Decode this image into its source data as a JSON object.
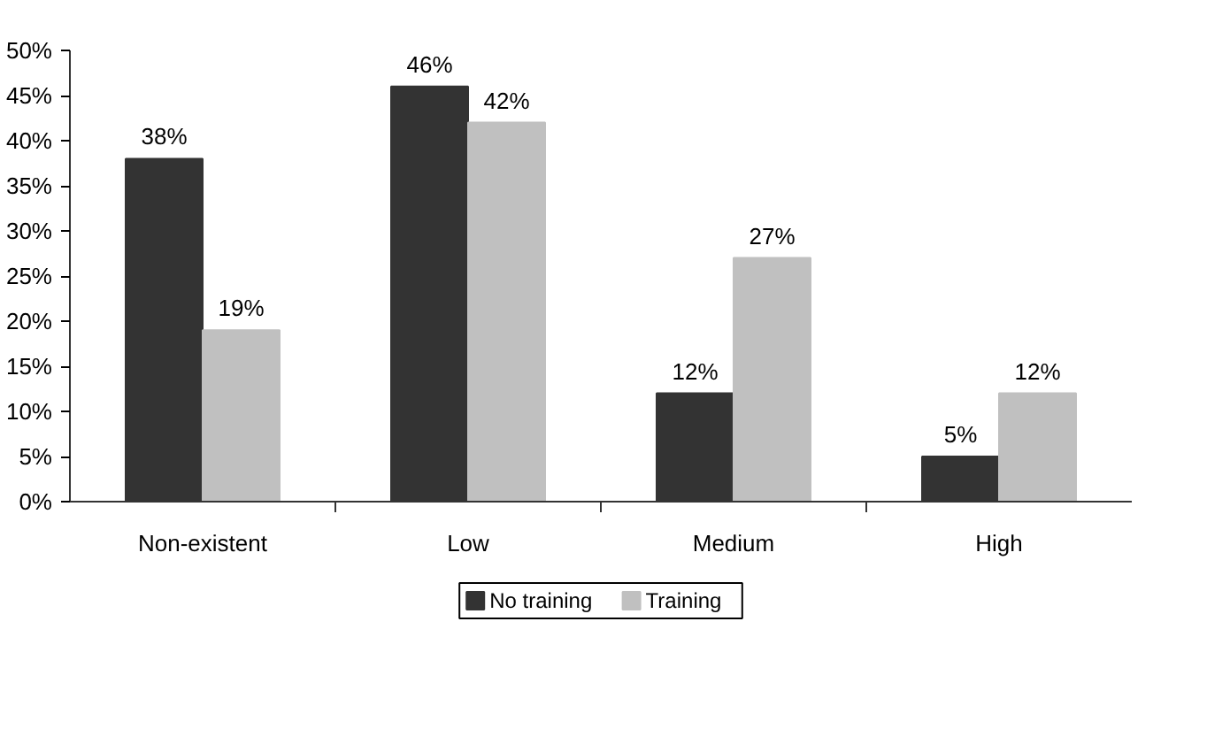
{
  "chart_data": {
    "type": "bar",
    "categories": [
      "Non-existent",
      "Low",
      "Medium",
      "High"
    ],
    "series": [
      {
        "name": "No training",
        "color": "#333333",
        "values": [
          38,
          46,
          12,
          5
        ],
        "value_labels": [
          "38%",
          "46%",
          "12%",
          "5%"
        ]
      },
      {
        "name": "Training",
        "color": "#c0c0c0",
        "values": [
          19,
          42,
          27,
          12
        ],
        "value_labels": [
          "19%",
          "42%",
          "27%",
          "12%"
        ]
      }
    ],
    "ylim": [
      0,
      50
    ],
    "yticks": [
      {
        "value": 0,
        "label": "0%"
      },
      {
        "value": 5,
        "label": "5%"
      },
      {
        "value": 10,
        "label": "10%"
      },
      {
        "value": 15,
        "label": "15%"
      },
      {
        "value": 20,
        "label": "20%"
      },
      {
        "value": 25,
        "label": "25%"
      },
      {
        "value": 30,
        "label": "30%"
      },
      {
        "value": 35,
        "label": "35%"
      },
      {
        "value": 40,
        "label": "40%"
      },
      {
        "value": 45,
        "label": "45%"
      },
      {
        "value": 50,
        "label": "50%"
      }
    ],
    "grid": false,
    "legend": "bottom"
  }
}
